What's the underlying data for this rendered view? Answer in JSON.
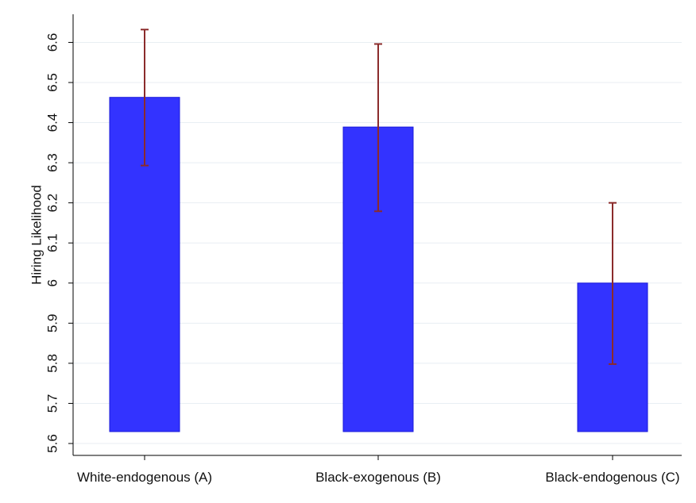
{
  "chart_data": {
    "type": "bar",
    "title": "",
    "xlabel": "",
    "ylabel": "Hiring Likelihood",
    "categories": [
      "White-endogenous (A)",
      "Black-exogenous (B)",
      "Black-endogenous (C)"
    ],
    "values": [
      6.463,
      6.389,
      6.0
    ],
    "error_low": [
      6.293,
      6.179,
      5.798
    ],
    "error_high": [
      6.632,
      6.596,
      6.2
    ],
    "ylim": [
      5.6,
      6.65
    ],
    "yticks": [
      "5.6",
      "5.7",
      "5.8",
      "5.9",
      "6",
      "6.1",
      "6.2",
      "6.3",
      "6.4",
      "6.5",
      "6.6"
    ],
    "grid": "horizontal",
    "colors": {
      "bar_fill": "#3333ff",
      "bar_stroke": "#1a1ad9",
      "error_bar": "#8b2b2b",
      "grid": "#e8eef3",
      "axis": "#000000"
    }
  }
}
